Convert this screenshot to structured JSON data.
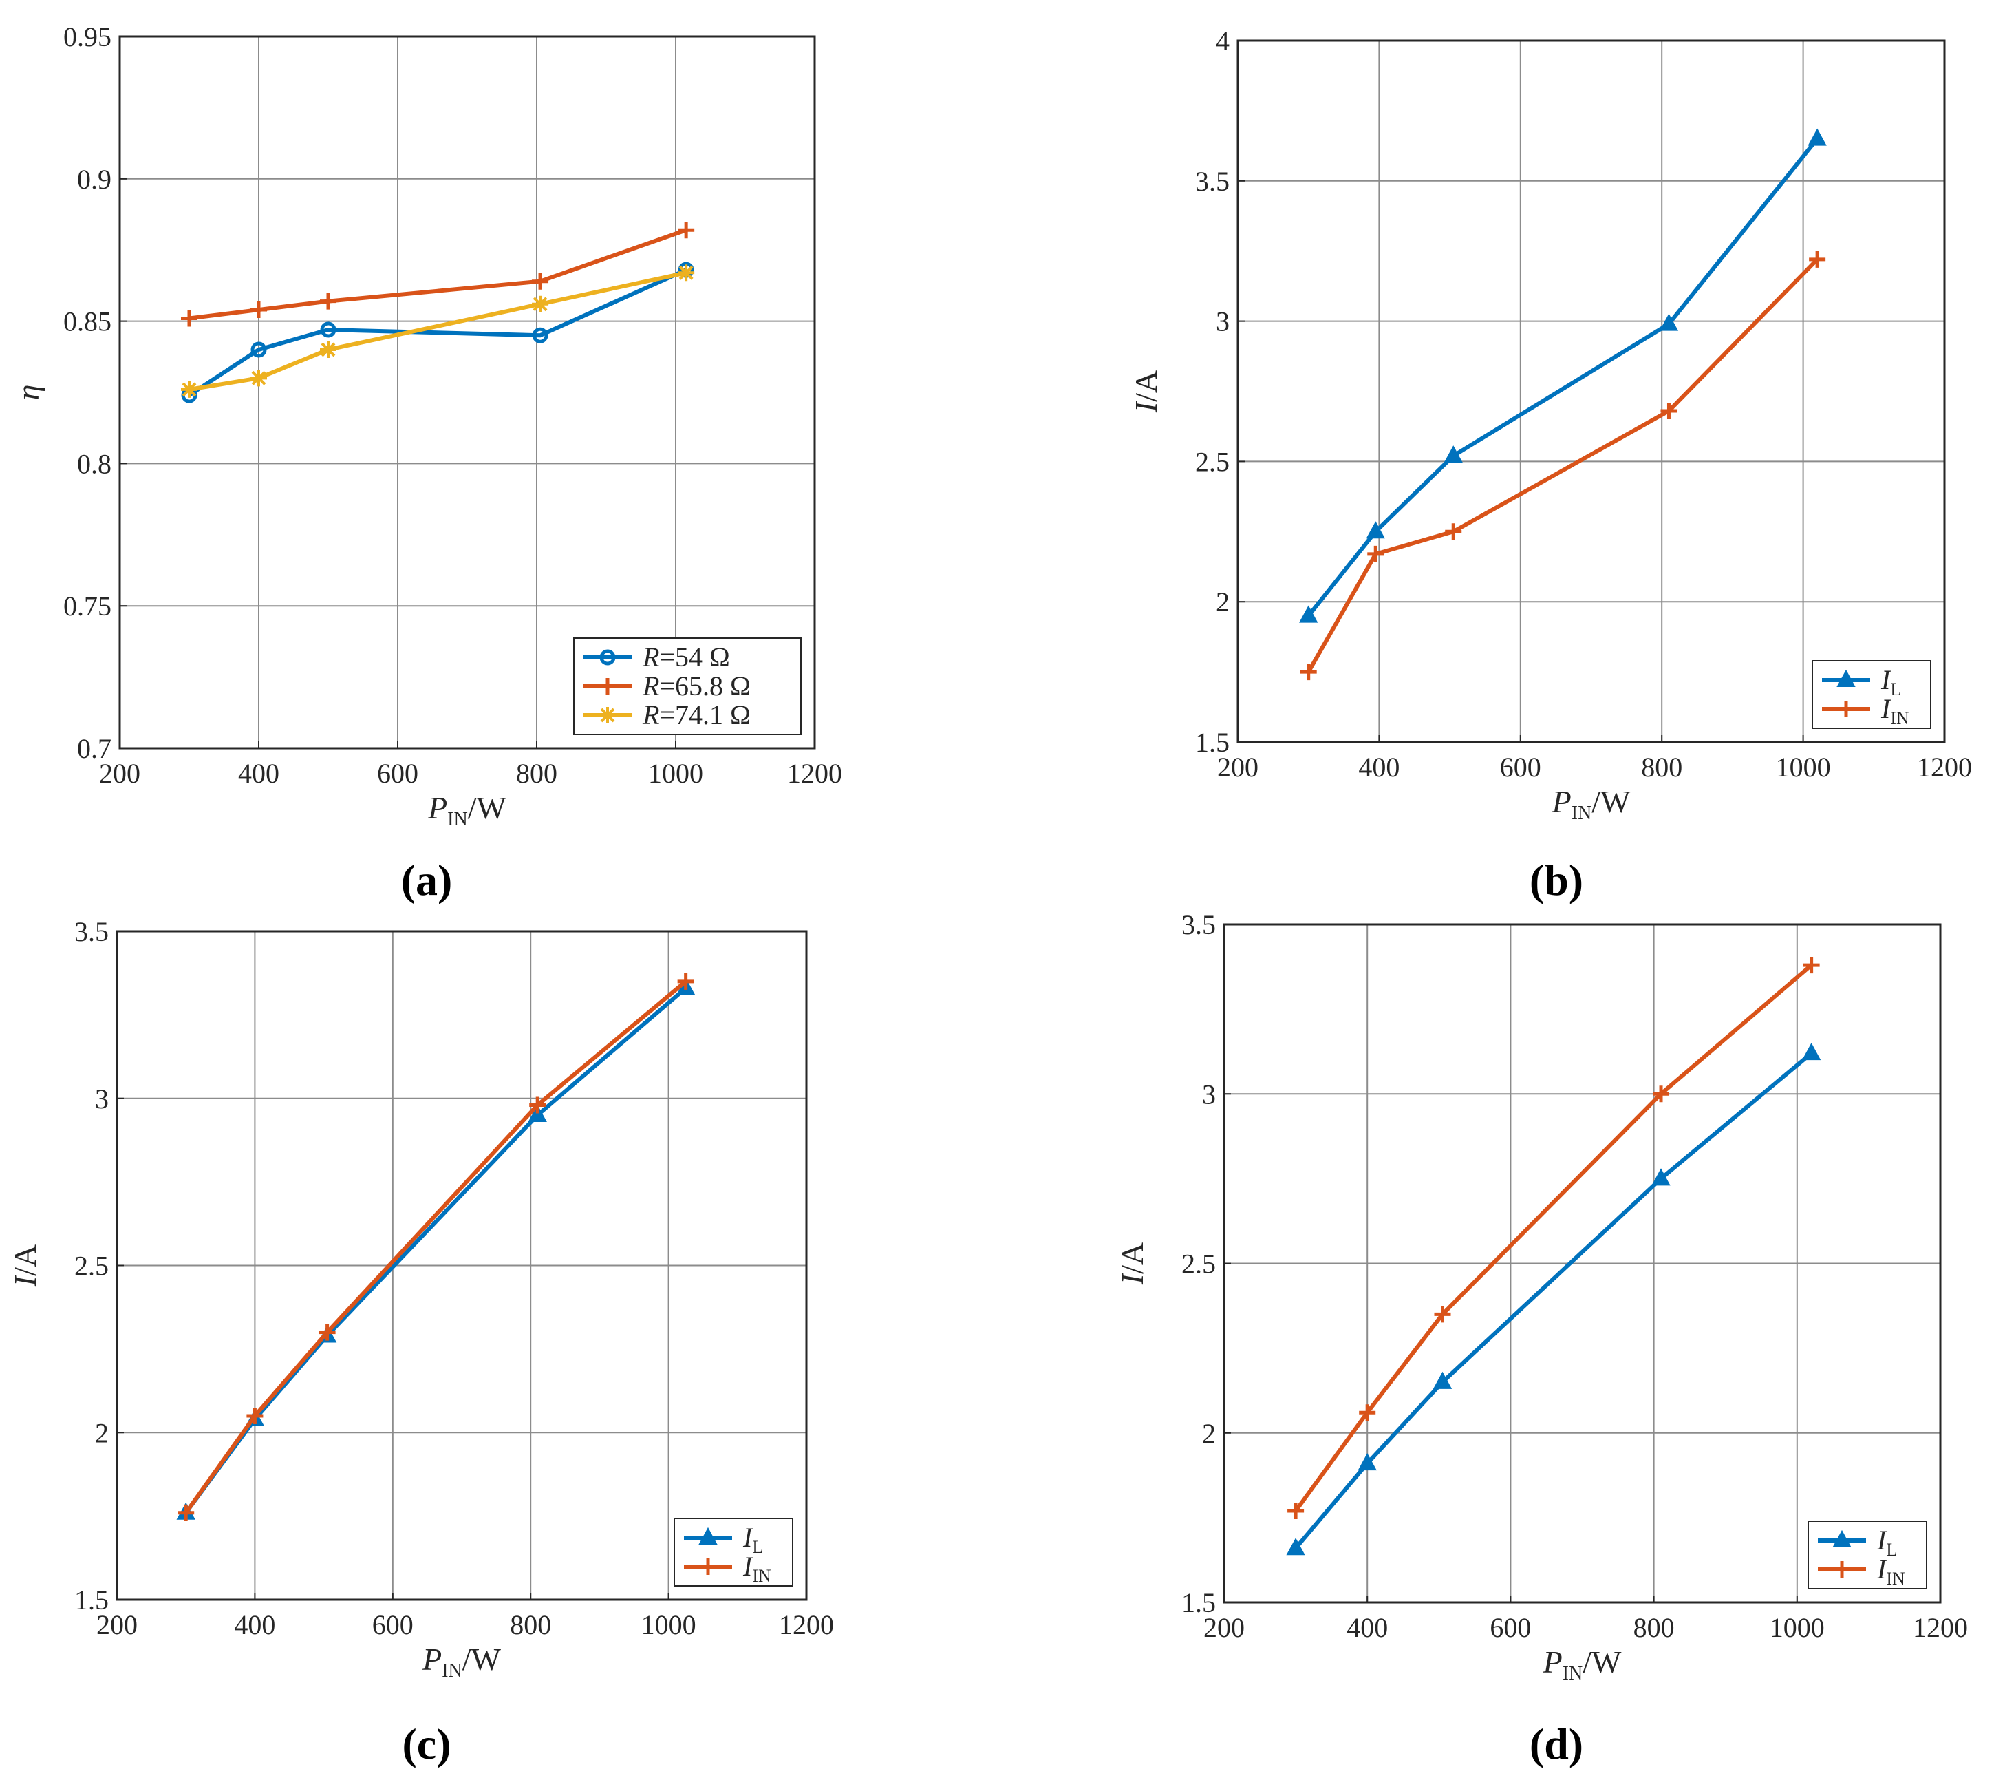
{
  "chart_data": [
    {
      "type": "line",
      "panel": "(a)",
      "caption": "(a)",
      "xlabel": {
        "main": "P",
        "sub": "IN",
        "unit": "/W"
      },
      "ylabel": {
        "main": "η",
        "sub": "",
        "unit": ""
      },
      "xlim": [
        200,
        1200
      ],
      "ylim": [
        0.7,
        0.95
      ],
      "xticks": [
        200,
        400,
        600,
        800,
        1000,
        1200
      ],
      "yticks": [
        0.7,
        0.75,
        0.8,
        0.85,
        0.9,
        0.95
      ],
      "grid": true,
      "legend_position": "bottom-right",
      "series": [
        {
          "name": "R=54 Ω",
          "label_main": "R",
          "label_rest": "=54 Ω",
          "label_sub": "",
          "color": "#0072BD",
          "marker": "circle",
          "x": [
            300,
            400,
            500,
            805,
            1015
          ],
          "y": [
            0.824,
            0.84,
            0.847,
            0.845,
            0.868
          ]
        },
        {
          "name": "R=65.8 Ω",
          "label_main": "R",
          "label_rest": "=65.8 Ω",
          "label_sub": "",
          "color": "#D95319",
          "marker": "plus",
          "x": [
            300,
            400,
            500,
            805,
            1015
          ],
          "y": [
            0.851,
            0.854,
            0.857,
            0.864,
            0.882
          ]
        },
        {
          "name": "R=74.1 Ω",
          "label_main": "R",
          "label_rest": "=74.1 Ω",
          "label_sub": "",
          "color": "#EDB120",
          "marker": "asterisk",
          "x": [
            300,
            400,
            500,
            805,
            1015
          ],
          "y": [
            0.826,
            0.83,
            0.84,
            0.856,
            0.867
          ]
        }
      ]
    },
    {
      "type": "line",
      "panel": "(b)",
      "caption": "(b)",
      "xlabel": {
        "main": "P",
        "sub": "IN",
        "unit": "/W"
      },
      "ylabel": {
        "main": "I",
        "sub": "",
        "unit": "/A"
      },
      "xlim": [
        200,
        1200
      ],
      "ylim": [
        1.5,
        4
      ],
      "xticks": [
        200,
        400,
        600,
        800,
        1000,
        1200
      ],
      "yticks": [
        1.5,
        2,
        2.5,
        3,
        3.5,
        4
      ],
      "grid": true,
      "legend_position": "bottom-right",
      "series": [
        {
          "name": "IL",
          "label_main": "I",
          "label_rest": "",
          "label_sub": "L",
          "color": "#0072BD",
          "marker": "triangle",
          "x": [
            300,
            395,
            505,
            810,
            1020
          ],
          "y": [
            1.95,
            2.25,
            2.52,
            2.99,
            3.65
          ]
        },
        {
          "name": "IIN",
          "label_main": "I",
          "label_rest": "",
          "label_sub": "IN",
          "color": "#D95319",
          "marker": "plus",
          "x": [
            300,
            395,
            505,
            810,
            1020
          ],
          "y": [
            1.75,
            2.17,
            2.25,
            2.68,
            3.22
          ]
        }
      ]
    },
    {
      "type": "line",
      "panel": "(c)",
      "caption": "(c)",
      "xlabel": {
        "main": "P",
        "sub": "IN",
        "unit": "/W"
      },
      "ylabel": {
        "main": "I",
        "sub": "",
        "unit": "/A"
      },
      "xlim": [
        200,
        1200
      ],
      "ylim": [
        1.5,
        3.5
      ],
      "xticks": [
        200,
        400,
        600,
        800,
        1000,
        1200
      ],
      "yticks": [
        1.5,
        2,
        2.5,
        3,
        3.5
      ],
      "grid": true,
      "legend_position": "bottom-right",
      "series": [
        {
          "name": "IL",
          "label_main": "I",
          "label_rest": "",
          "label_sub": "L",
          "color": "#0072BD",
          "marker": "triangle",
          "x": [
            300,
            400,
            505,
            810,
            1025
          ],
          "y": [
            1.76,
            2.04,
            2.29,
            2.95,
            3.33
          ]
        },
        {
          "name": "IIN",
          "label_main": "I",
          "label_rest": "",
          "label_sub": "IN",
          "color": "#D95319",
          "marker": "plus",
          "x": [
            300,
            400,
            505,
            810,
            1025
          ],
          "y": [
            1.76,
            2.05,
            2.3,
            2.98,
            3.35
          ]
        }
      ]
    },
    {
      "type": "line",
      "panel": "(d)",
      "caption": "(d)",
      "xlabel": {
        "main": "P",
        "sub": "IN",
        "unit": "/W"
      },
      "ylabel": {
        "main": "I",
        "sub": "",
        "unit": "/A"
      },
      "xlim": [
        200,
        1200
      ],
      "ylim": [
        1.5,
        3.5
      ],
      "xticks": [
        200,
        400,
        600,
        800,
        1000,
        1200
      ],
      "yticks": [
        1.5,
        2,
        2.5,
        3,
        3.5
      ],
      "grid": true,
      "legend_position": "bottom-right",
      "series": [
        {
          "name": "IL",
          "label_main": "I",
          "label_rest": "",
          "label_sub": "L",
          "color": "#0072BD",
          "marker": "triangle",
          "x": [
            300,
            400,
            505,
            810,
            1020
          ],
          "y": [
            1.66,
            1.91,
            2.15,
            2.75,
            3.12
          ]
        },
        {
          "name": "IIN",
          "label_main": "I",
          "label_rest": "",
          "label_sub": "IN",
          "color": "#D95319",
          "marker": "plus",
          "x": [
            300,
            400,
            505,
            810,
            1020
          ],
          "y": [
            1.77,
            2.06,
            2.35,
            3.0,
            3.38
          ]
        }
      ]
    }
  ]
}
